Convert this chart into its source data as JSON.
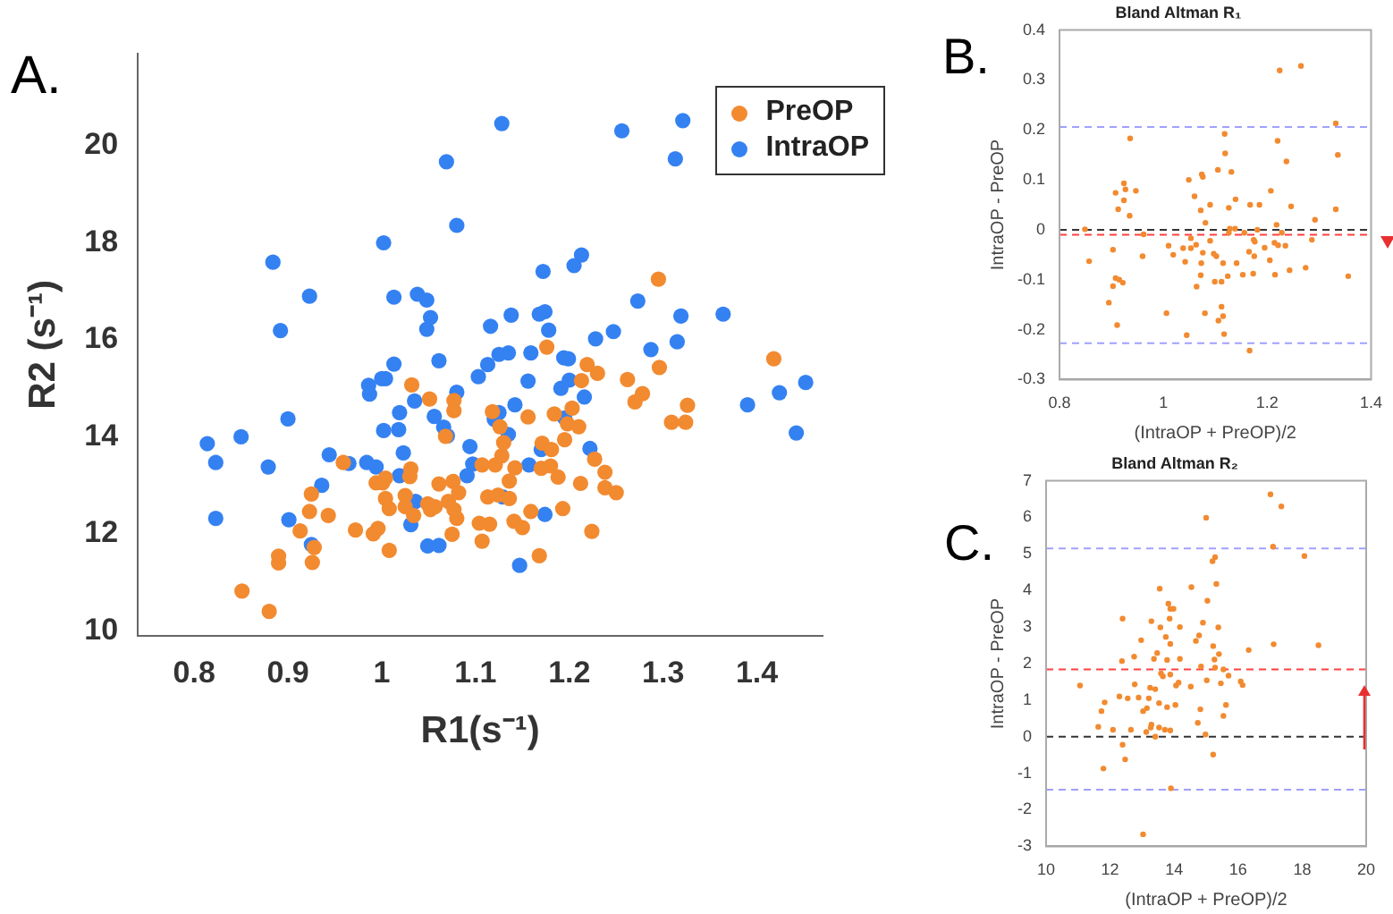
{
  "chart_data": [
    {
      "type": "scatter",
      "xlabel": "R1(s⁻¹)",
      "ylabel": "R2 (s⁻¹)",
      "annotations": [
        "A."
      ],
      "xlim": [
        0.74,
        1.47
      ],
      "ylim": [
        9.9,
        21.9
      ],
      "xticks": [
        0.8,
        0.9,
        1,
        1.1,
        1.2,
        1.3,
        1.4
      ],
      "yticks": [
        10,
        12,
        14,
        16,
        18,
        20
      ],
      "grid": false,
      "legend": "top right",
      "marker": "circle",
      "series": [
        {
          "name": "PreOP",
          "color": "#f28a30",
          "x": [
            0.851,
            0.88,
            0.89,
            0.89,
            0.926,
            0.928,
            0.925,
            0.923,
            0.913,
            0.943,
            0.959,
            0.972,
            0.994,
            1.001,
            0.991,
            0.996,
            1.004,
            1.004,
            1.008,
            1.008,
            1.025,
            1.025,
            1.03,
            1.031,
            1.034,
            1.049,
            1.052,
            1.057,
            1.051,
            1.068,
            1.061,
            1.076,
            1.077,
            1.077,
            1.082,
            1.077,
            1.071,
            1.075,
            1.08,
            1.104,
            1.107,
            1.295,
            1.176,
            1.219,
            1.23,
            1.296,
            1.262,
            1.213,
            1.418,
            1.278,
            1.27,
            1.326,
            1.324,
            1.309,
            1.118,
            1.184,
            1.203,
            1.198,
            1.21,
            1.126,
            1.156,
            1.13,
            1.171,
            1.181,
            1.195,
            1.128,
            1.227,
            1.107,
            1.121,
            1.142,
            1.17,
            1.18,
            1.238,
            1.136,
            1.188,
            1.212,
            1.238,
            1.25,
            1.113,
            1.124,
            1.136,
            1.159,
            1.193,
            1.141,
            1.15,
            1.115,
            1.224,
            1.168,
            1.032
          ],
          "values": [
            10.82,
            10.4,
            11.54,
            11.4,
            11.41,
            11.72,
            12.82,
            12.46,
            12.06,
            12.38,
            13.47,
            12.08,
            13.05,
            13.05,
            12.0,
            12.11,
            13.15,
            12.73,
            12.52,
            11.66,
            12.79,
            12.56,
            13.18,
            13.34,
            12.38,
            12.62,
            12.5,
            12.56,
            14.78,
            14.01,
            13.03,
            13.08,
            14.75,
            14.54,
            12.85,
            12.5,
            12.67,
            11.99,
            12.32,
            12.22,
            11.85,
            17.25,
            15.85,
            15.49,
            15.31,
            15.43,
            15.18,
            15.16,
            15.61,
            14.89,
            14.72,
            14.65,
            14.3,
            14.3,
            14.52,
            14.47,
            14.59,
            14.27,
            14.21,
            14.21,
            14.41,
            13.88,
            13.87,
            13.74,
            13.94,
            13.61,
            13.54,
            13.42,
            13.42,
            13.36,
            13.35,
            13.4,
            13.27,
            13.09,
            13.17,
            13.04,
            12.95,
            12.85,
            12.76,
            12.8,
            12.73,
            12.46,
            12.52,
            12.26,
            12.13,
            12.2,
            12.05,
            11.55,
            15.07
          ]
        },
        {
          "name": "IntraOP",
          "color": "#3481f2",
          "x": [
            0.814,
            0.823,
            0.823,
            0.85,
            0.879,
            0.884,
            0.892,
            0.9,
            0.901,
            0.923,
            0.925,
            0.936,
            0.944,
            0.965,
            0.984,
            0.994,
            0.986,
            0.987,
            1.002,
            1.002,
            1.0,
            1.004,
            1.013,
            1.013,
            1.018,
            1.019,
            1.019,
            1.023,
            1.031,
            1.035,
            1.036,
            1.038,
            1.048,
            1.048,
            1.052,
            1.056,
            1.061,
            1.049,
            1.061,
            1.066,
            1.069,
            1.07,
            1.08,
            1.08,
            1.091,
            1.094,
            1.097,
            1.128,
            1.256,
            1.321,
            1.313,
            1.213,
            1.205,
            1.172,
            1.273,
            1.138,
            1.168,
            1.174,
            1.319,
            1.364,
            1.116,
            1.178,
            1.247,
            1.228,
            1.315,
            1.287,
            1.125,
            1.135,
            1.159,
            1.113,
            1.194,
            1.199,
            1.103,
            1.156,
            1.2,
            1.191,
            1.216,
            1.142,
            1.125,
            1.12,
            1.195,
            1.39,
            1.424,
            1.452,
            1.442,
            1.135,
            1.17,
            1.222,
            1.157,
            1.129,
            1.174,
            1.147
          ],
          "values": [
            13.86,
            13.47,
            12.32,
            14.0,
            13.38,
            17.6,
            16.19,
            14.37,
            12.29,
            16.9,
            11.78,
            13.0,
            13.63,
            13.45,
            13.47,
            13.38,
            15.06,
            14.88,
            18.0,
            14.13,
            15.2,
            15.2,
            15.5,
            16.88,
            14.15,
            14.5,
            13.2,
            13.67,
            12.19,
            14.74,
            12.67,
            16.94,
            16.82,
            16.22,
            16.46,
            14.42,
            15.57,
            11.75,
            11.76,
            14.2,
            19.67,
            14.02,
            18.36,
            14.92,
            13.2,
            13.8,
            13.44,
            20.46,
            20.31,
            20.52,
            19.73,
            17.75,
            17.53,
            17.41,
            16.8,
            16.51,
            16.53,
            16.58,
            16.49,
            16.53,
            16.28,
            16.2,
            16.17,
            16.02,
            15.96,
            15.8,
            15.7,
            15.73,
            15.73,
            15.49,
            15.63,
            15.61,
            15.24,
            15.15,
            15.17,
            15.0,
            14.82,
            14.66,
            14.5,
            14.36,
            14.39,
            14.66,
            14.91,
            15.12,
            14.08,
            14.05,
            13.74,
            13.76,
            13.42,
            12.76,
            12.4,
            11.35
          ]
        }
      ]
    },
    {
      "type": "scatter",
      "title": "Bland Altman R₁",
      "xlabel": "(IntraOP + PreOP)/2",
      "ylabel": "IntraOP - PreOP",
      "annotations": [
        "B."
      ],
      "xlim": [
        0.8,
        1.4
      ],
      "ylim": [
        -0.3,
        0.4
      ],
      "xticks": [
        0.8,
        1,
        1.2,
        1.4
      ],
      "yticks": [
        -0.3,
        -0.2,
        -0.1,
        0,
        0.1,
        0.2,
        0.3,
        0.4
      ],
      "grid": false,
      "marker": "circle",
      "color": "#f28a30",
      "x": [
        1.265,
        1.224,
        1.332,
        1.118,
        1.22,
        1.336,
        1.119,
        1.237,
        0.936,
        1.105,
        1.131,
        1.074,
        1.076,
        1.049,
        0.947,
        0.924,
        0.927,
        0.908,
        1.06,
        1.139,
        1.207,
        1.167,
        1.185,
        1.126,
        1.246,
        1.09,
        1.072,
        0.913,
        0.935,
        0.924,
        1.332,
        1.292,
        1.081,
        0.849,
        1.218,
        1.128,
        1.138,
        0.962,
        1.181,
        1.053,
        1.126,
        1.156,
        1.228,
        1.286,
        1.09,
        1.174,
        1.176,
        1.214,
        1.221,
        1.063,
        1.01,
        1.195,
        1.235,
        1.038,
        1.053,
        1.019,
        1.097,
        1.102,
        1.076,
        1.165,
        1.175,
        0.96,
        1.073,
        1.042,
        1.141,
        0.857,
        0.903,
        1.205,
        1.115,
        1.243,
        1.274,
        1.173,
        1.153,
        1.072,
        1.356,
        1.124,
        1.215,
        0.908,
        0.915,
        0.922,
        1.099,
        1.112,
        0.903,
        1.064,
        0.895,
        1.08,
        1.006,
        1.112,
        1.115,
        1.106,
        0.911,
        1.045,
        1.117,
        1.166
      ],
      "values": [
        0.328,
        0.319,
        0.213,
        0.192,
        0.178,
        0.15,
        0.153,
        0.137,
        0.183,
        0.12,
        0.116,
        0.111,
        0.106,
        0.1,
        0.078,
        0.093,
        0.081,
        0.074,
        0.067,
        0.061,
        0.078,
        0.05,
        0.05,
        0.044,
        0.047,
        0.05,
        0.039,
        0.041,
        0.028,
        0.059,
        0.041,
        0.02,
        0.014,
        0.001,
        0.01,
        0.002,
        0.002,
        -0.009,
        0.0,
        -0.017,
        -0.006,
        -0.006,
        -0.006,
        -0.02,
        -0.022,
        -0.02,
        -0.024,
        -0.026,
        -0.031,
        -0.03,
        -0.032,
        -0.036,
        -0.032,
        -0.037,
        -0.037,
        -0.05,
        -0.048,
        -0.053,
        -0.046,
        -0.044,
        -0.053,
        -0.053,
        -0.067,
        -0.064,
        -0.067,
        -0.063,
        -0.04,
        -0.061,
        -0.067,
        -0.081,
        -0.076,
        -0.088,
        -0.09,
        -0.091,
        -0.093,
        -0.093,
        -0.09,
        -0.097,
        -0.1,
        -0.106,
        -0.104,
        -0.104,
        -0.113,
        -0.114,
        -0.146,
        -0.167,
        -0.167,
        -0.154,
        -0.173,
        -0.182,
        -0.191,
        -0.211,
        -0.209,
        -0.242
      ],
      "ref_lines": [
        {
          "axis": "y",
          "value": 0.206,
          "color": "#a0a0ff",
          "line_style": "dashed"
        },
        {
          "axis": "y",
          "value": -0.227,
          "color": "#a0a0ff",
          "line_style": "dashed"
        },
        {
          "axis": "y",
          "value": 0,
          "color": "#333333",
          "line_style": "dashed"
        },
        {
          "axis": "y",
          "value": -0.01,
          "color": "#ff4040",
          "line_style": "dashed"
        }
      ]
    },
    {
      "type": "scatter",
      "title": "Bland Altman R₂",
      "xlabel": "(IntraOP + PreOP)/2",
      "ylabel": "IntraOP - PreOP",
      "annotations": [
        "C."
      ],
      "xlim": [
        10,
        20
      ],
      "ylim": [
        -3,
        7
      ],
      "xticks": [
        10,
        12,
        14,
        16,
        18,
        20
      ],
      "yticks": [
        -3,
        -2,
        -1,
        0,
        1,
        2,
        3,
        4,
        5,
        6,
        7
      ],
      "grid": false,
      "marker": "circle",
      "color": "#f28a30",
      "x": [
        17.01,
        17.35,
        15.0,
        17.09,
        18.07,
        15.28,
        15.2,
        15.32,
        13.55,
        14.54,
        13.82,
        13.88,
        13.98,
        15.04,
        13.29,
        13.86,
        12.39,
        14.9,
        13.57,
        14.18,
        15.38,
        13.74,
        14.78,
        12.97,
        14.68,
        13.88,
        17.11,
        18.51,
        15.22,
        14.18,
        13.47,
        12.37,
        13.37,
        13.78,
        12.75,
        15.26,
        16.33,
        15.4,
        14.84,
        15.54,
        15.28,
        13.59,
        13.65,
        13.88,
        15.7,
        12.77,
        13.25,
        13.41,
        14.14,
        14.06,
        14.52,
        15.02,
        15.46,
        16.08,
        16.14,
        11.06,
        12.29,
        12.55,
        12.89,
        13.21,
        13.53,
        14.04,
        11.83,
        15.62,
        13.15,
        13.78,
        14.82,
        13.03,
        11.73,
        15.54,
        14.74,
        13.29,
        13.27,
        11.63,
        12.09,
        12.65,
        13.53,
        13.71,
        13.88,
        13.13,
        14.98,
        13.41,
        12.39,
        12.47,
        15.22,
        11.79,
        13.9,
        13.03
      ],
      "values": [
        6.63,
        6.3,
        5.99,
        5.2,
        4.94,
        4.91,
        4.8,
        4.18,
        4.05,
        4.09,
        3.64,
        3.5,
        3.5,
        3.72,
        3.16,
        3.23,
        3.23,
        3.12,
        2.99,
        3.0,
        2.99,
        2.73,
        2.77,
        2.64,
        2.62,
        2.54,
        2.53,
        2.5,
        2.48,
        2.13,
        2.29,
        2.07,
        2.13,
        2.1,
        2.19,
        2.11,
        2.37,
        2.26,
        1.92,
        1.84,
        1.89,
        1.73,
        1.65,
        1.7,
        1.67,
        1.43,
        1.34,
        1.3,
        1.48,
        1.4,
        1.37,
        1.54,
        1.46,
        1.51,
        1.41,
        1.4,
        1.1,
        1.05,
        1.07,
        1.05,
        0.92,
        0.87,
        0.94,
        0.87,
        0.78,
        0.81,
        0.75,
        0.7,
        0.7,
        0.57,
        0.38,
        0.33,
        0.25,
        0.27,
        0.19,
        0.19,
        0.25,
        0.19,
        0.17,
        0.13,
        0.06,
        0.0,
        -0.22,
        -0.62,
        -0.49,
        -0.87,
        -1.41,
        -2.67
      ],
      "ref_lines": [
        {
          "axis": "y",
          "value": 5.15,
          "color": "#a0a0ff",
          "line_style": "dashed"
        },
        {
          "axis": "y",
          "value": -1.45,
          "color": "#a0a0ff",
          "line_style": "dashed"
        },
        {
          "axis": "y",
          "value": 1.84,
          "color": "#ff4040",
          "line_style": "dashed"
        },
        {
          "axis": "y",
          "value": 0,
          "color": "#333333",
          "line_style": "dashed"
        }
      ]
    }
  ]
}
